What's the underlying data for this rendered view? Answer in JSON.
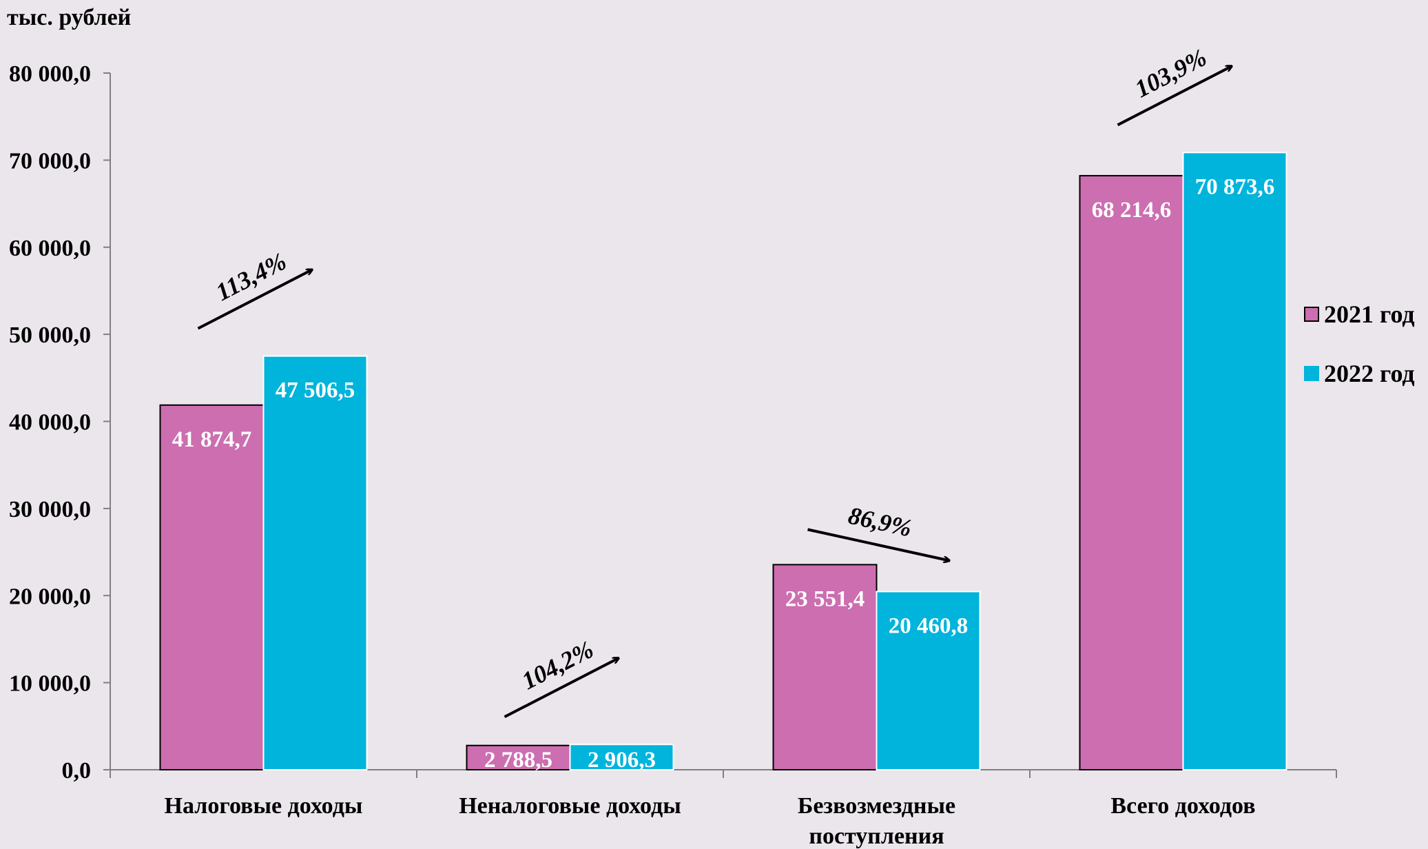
{
  "chart_data": {
    "type": "bar",
    "ylabel": "тыс. рублей",
    "categories": [
      [
        "Налоговые доходы"
      ],
      [
        "Неналоговые доходы"
      ],
      [
        "Безвозмездные",
        "поступления"
      ],
      [
        "Всего доходов"
      ]
    ],
    "series": [
      {
        "name": "2021 год",
        "color": "#cc6eb0",
        "values": [
          41874.7,
          2788.5,
          23551.4,
          68214.6
        ],
        "labels": [
          "41 874,7",
          "2 788,5",
          "23 551,4",
          "68 214,6"
        ]
      },
      {
        "name": "2022 год",
        "color": "#00b4dc",
        "values": [
          47506.5,
          2906.3,
          20460.8,
          70873.6
        ],
        "labels": [
          "47 506,5",
          "2 906,3",
          "20 460,8",
          "70 873,6"
        ]
      }
    ],
    "growth_annotations": [
      "113,4%",
      "104,2%",
      "86,9%",
      "103,9%"
    ],
    "ylim": [
      0,
      80000
    ],
    "yticks": [
      0,
      10000,
      20000,
      30000,
      40000,
      50000,
      60000,
      70000,
      80000
    ],
    "ytick_labels": [
      "0,0",
      "10 000,0",
      "20 000,0",
      "30 000,0",
      "40 000,0",
      "50 000,0",
      "60 000,0",
      "70 000,0",
      "80 000,0"
    ],
    "grid": false,
    "legend_position": "right"
  }
}
